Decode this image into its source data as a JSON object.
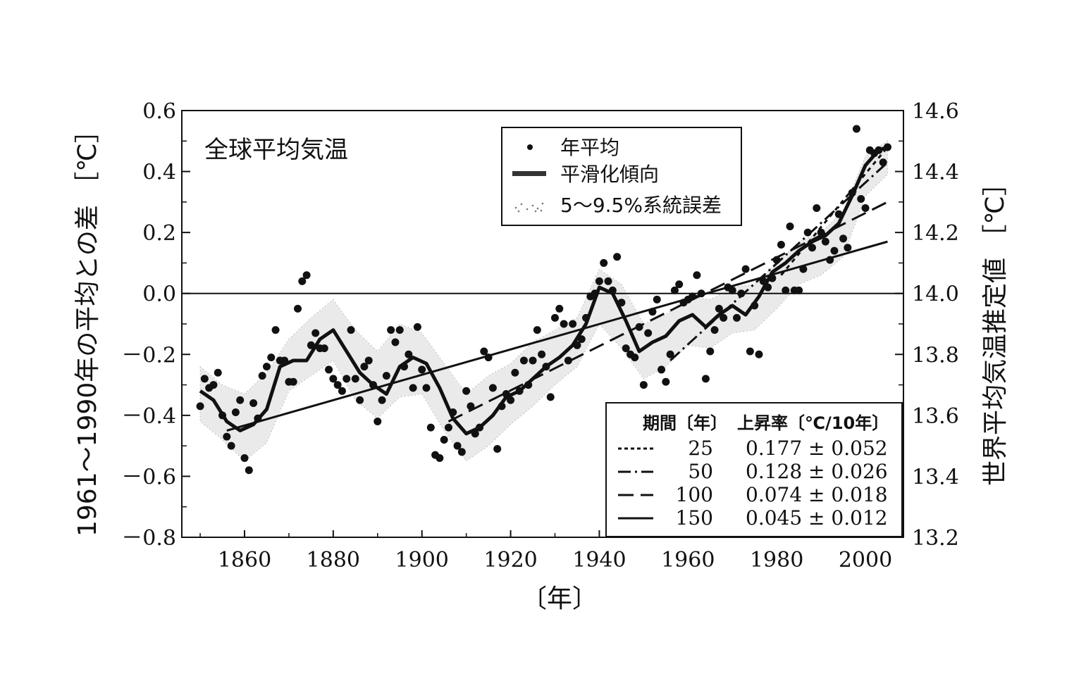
{
  "chart_data": {
    "type": "scatter",
    "title": "全球平均気温",
    "xlabel": "〔年〕",
    "ylabel_left": "1961～1990年の平均との差 ［℃］",
    "ylabel_right": "世界平均気温推定値 ［℃］",
    "xlim": [
      1845,
      2012
    ],
    "ylim": [
      -0.8,
      0.6
    ],
    "ylim_right": [
      13.2,
      14.6
    ],
    "x_ticks": [
      1860,
      1880,
      1900,
      1920,
      1940,
      1960,
      1980,
      2000
    ],
    "y_ticks_left": [
      "0.6",
      "0.4",
      "0.2",
      "0.0",
      "－0.2",
      "－0.4",
      "－0.6",
      "－0.8"
    ],
    "y_tick_values_left": [
      0.6,
      0.4,
      0.2,
      0.0,
      -0.2,
      -0.4,
      -0.6,
      -0.8
    ],
    "y_ticks_right": [
      "14.6",
      "14.4",
      "14.2",
      "14.0",
      "13.8",
      "13.6",
      "13.4",
      "13.2"
    ],
    "legend": {
      "items": [
        {
          "label": "年平均",
          "symbol": "dot"
        },
        {
          "label": "平滑化傾向",
          "symbol": "thick-line"
        },
        {
          "label": "5～9.5%系統誤差",
          "symbol": "stipple"
        }
      ]
    },
    "trend_table": {
      "header_period": "期間〔年〕",
      "header_rate": "上昇率〔℃/10年〕",
      "rows": [
        {
          "style": "dotted",
          "period": "25",
          "rate": "0.177 ± 0.052",
          "x": [
            1981,
            2005
          ],
          "y": [
            0.06,
            0.48
          ]
        },
        {
          "style": "dash-dot",
          "period": "50",
          "rate": "0.128 ± 0.026",
          "x": [
            1956,
            2005
          ],
          "y": [
            -0.22,
            0.43
          ]
        },
        {
          "style": "long-dash",
          "period": "100",
          "rate": "0.074 ± 0.018",
          "x": [
            1906,
            2005
          ],
          "y": [
            -0.42,
            0.3
          ]
        },
        {
          "style": "solid",
          "period": "150",
          "rate": "0.045 ± 0.012",
          "x": [
            1856,
            2005
          ],
          "y": [
            -0.45,
            0.17
          ]
        }
      ]
    },
    "annual": {
      "x": [
        1850,
        1851,
        1852,
        1853,
        1854,
        1855,
        1856,
        1857,
        1858,
        1859,
        1860,
        1861,
        1862,
        1863,
        1864,
        1865,
        1866,
        1867,
        1868,
        1869,
        1870,
        1871,
        1872,
        1873,
        1874,
        1875,
        1876,
        1877,
        1878,
        1879,
        1880,
        1881,
        1882,
        1883,
        1884,
        1885,
        1886,
        1887,
        1888,
        1889,
        1890,
        1891,
        1892,
        1893,
        1894,
        1895,
        1896,
        1897,
        1898,
        1899,
        1900,
        1901,
        1902,
        1903,
        1904,
        1905,
        1906,
        1907,
        1908,
        1909,
        1910,
        1911,
        1912,
        1913,
        1914,
        1915,
        1916,
        1917,
        1918,
        1919,
        1920,
        1921,
        1922,
        1923,
        1924,
        1925,
        1926,
        1927,
        1928,
        1929,
        1930,
        1931,
        1932,
        1933,
        1934,
        1935,
        1936,
        1937,
        1938,
        1939,
        1940,
        1941,
        1942,
        1943,
        1944,
        1945,
        1946,
        1947,
        1948,
        1949,
        1950,
        1951,
        1952,
        1953,
        1954,
        1955,
        1956,
        1957,
        1958,
        1959,
        1960,
        1961,
        1962,
        1963,
        1964,
        1965,
        1966,
        1967,
        1968,
        1969,
        1970,
        1971,
        1972,
        1973,
        1974,
        1975,
        1976,
        1977,
        1978,
        1979,
        1980,
        1981,
        1982,
        1983,
        1984,
        1985,
        1986,
        1987,
        1988,
        1989,
        1990,
        1991,
        1992,
        1993,
        1994,
        1995,
        1996,
        1997,
        1998,
        1999,
        2000,
        2001,
        2002,
        2003,
        2004,
        2005
      ],
      "y": [
        -0.37,
        -0.28,
        -0.31,
        -0.3,
        -0.26,
        -0.4,
        -0.47,
        -0.5,
        -0.39,
        -0.35,
        -0.54,
        -0.58,
        -0.36,
        -0.41,
        -0.27,
        -0.24,
        -0.21,
        -0.12,
        -0.22,
        -0.22,
        -0.29,
        -0.29,
        -0.05,
        0.04,
        0.06,
        -0.17,
        -0.13,
        -0.18,
        -0.18,
        -0.25,
        -0.28,
        -0.3,
        -0.32,
        -0.28,
        -0.12,
        -0.28,
        -0.35,
        -0.24,
        -0.22,
        -0.3,
        -0.42,
        -0.35,
        -0.27,
        -0.12,
        -0.16,
        -0.12,
        -0.24,
        -0.2,
        -0.31,
        -0.11,
        -0.25,
        -0.31,
        -0.44,
        -0.53,
        -0.54,
        -0.48,
        -0.44,
        -0.39,
        -0.5,
        -0.52,
        -0.32,
        -0.37,
        -0.46,
        -0.44,
        -0.19,
        -0.21,
        -0.31,
        -0.51,
        -0.37,
        -0.33,
        -0.35,
        -0.26,
        -0.32,
        -0.22,
        -0.3,
        -0.22,
        -0.12,
        -0.2,
        -0.24,
        -0.34,
        -0.08,
        -0.05,
        -0.1,
        -0.22,
        -0.1,
        -0.17,
        -0.15,
        -0.08,
        -0.01,
        0.0,
        0.04,
        0.1,
        0.04,
        0.01,
        0.12,
        -0.03,
        -0.18,
        -0.2,
        -0.21,
        -0.11,
        -0.3,
        -0.13,
        -0.06,
        -0.02,
        -0.25,
        -0.29,
        -0.2,
        0.01,
        0.03,
        -0.03,
        -0.02,
        -0.01,
        0.06,
        0.0,
        -0.28,
        -0.19,
        -0.12,
        -0.05,
        -0.08,
        0.02,
        0.01,
        -0.08,
        0.0,
        0.08,
        -0.19,
        -0.04,
        -0.2,
        0.04,
        0.02,
        0.05,
        0.11,
        0.16,
        0.01,
        0.22,
        0.01,
        0.01,
        0.08,
        0.2,
        0.15,
        0.28,
        0.2,
        0.17,
        0.11,
        0.14,
        0.26,
        0.18,
        0.15,
        0.33,
        0.54,
        0.31,
        0.28,
        0.47,
        0.46,
        0.47,
        0.43,
        0.48
      ]
    },
    "smoothed": {
      "x": [
        1850,
        1853,
        1856,
        1859,
        1862,
        1865,
        1868,
        1871,
        1874,
        1877,
        1880,
        1883,
        1886,
        1889,
        1892,
        1895,
        1898,
        1901,
        1904,
        1907,
        1910,
        1913,
        1916,
        1919,
        1922,
        1925,
        1928,
        1931,
        1934,
        1937,
        1940,
        1943,
        1946,
        1949,
        1952,
        1955,
        1958,
        1961,
        1964,
        1967,
        1970,
        1973,
        1976,
        1979,
        1982,
        1985,
        1988,
        1991,
        1994,
        1997,
        2000,
        2003,
        2005
      ],
      "y": [
        -0.32,
        -0.35,
        -0.42,
        -0.45,
        -0.43,
        -0.38,
        -0.24,
        -0.22,
        -0.22,
        -0.15,
        -0.12,
        -0.19,
        -0.26,
        -0.3,
        -0.33,
        -0.24,
        -0.21,
        -0.23,
        -0.31,
        -0.41,
        -0.46,
        -0.44,
        -0.4,
        -0.34,
        -0.32,
        -0.28,
        -0.24,
        -0.21,
        -0.17,
        -0.1,
        0.02,
        0.0,
        -0.09,
        -0.19,
        -0.16,
        -0.14,
        -0.09,
        -0.07,
        -0.11,
        -0.07,
        -0.04,
        -0.07,
        -0.01,
        0.07,
        0.1,
        0.14,
        0.17,
        0.19,
        0.23,
        0.32,
        0.42,
        0.47,
        0.48
      ]
    },
    "uncertainty_band": {
      "x": [
        1850,
        1855,
        1860,
        1865,
        1870,
        1875,
        1880,
        1885,
        1890,
        1895,
        1900,
        1905,
        1910,
        1915,
        1920,
        1925,
        1930,
        1935,
        1940,
        1945,
        1950,
        1955,
        1960,
        1965,
        1970,
        1975,
        1980,
        1985,
        1990,
        1995,
        2000,
        2005
      ],
      "upper": [
        -0.24,
        -0.3,
        -0.33,
        -0.26,
        -0.15,
        -0.08,
        -0.02,
        -0.12,
        -0.19,
        -0.1,
        -0.13,
        -0.23,
        -0.33,
        -0.27,
        -0.23,
        -0.16,
        -0.12,
        -0.08,
        0.08,
        0.03,
        -0.1,
        -0.07,
        -0.01,
        -0.02,
        0.02,
        0.03,
        0.1,
        0.17,
        0.2,
        0.27,
        0.45,
        0.5
      ],
      "lower": [
        -0.42,
        -0.48,
        -0.55,
        -0.49,
        -0.32,
        -0.27,
        -0.22,
        -0.35,
        -0.41,
        -0.34,
        -0.33,
        -0.45,
        -0.55,
        -0.5,
        -0.43,
        -0.37,
        -0.3,
        -0.24,
        -0.1,
        -0.18,
        -0.28,
        -0.24,
        -0.17,
        -0.18,
        -0.13,
        -0.12,
        -0.05,
        0.03,
        0.06,
        0.12,
        0.32,
        0.39
      ]
    }
  }
}
